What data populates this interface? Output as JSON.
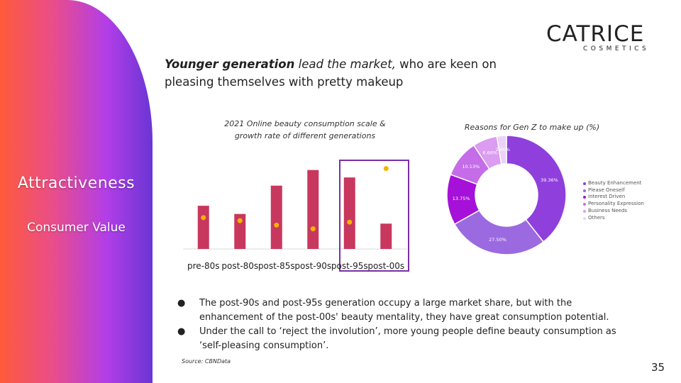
{
  "side": {
    "title": "Attractiveness",
    "subtitle": "Consumer Value"
  },
  "logo": {
    "main": "CATRICE",
    "sub": "COSMETICS"
  },
  "headline": {
    "bold": "Younger generation",
    "italic": "lead the market,",
    "rest_a": " who are keen on",
    "rest_b": "pleasing themselves with pretty makeup"
  },
  "chart_data": [
    {
      "type": "bar",
      "title_line1": "2021 Online beauty consumption scale &",
      "title_line2": "growth rate of different generations",
      "categories": [
        "pre-80s",
        "post-80s",
        "post-85s",
        "post-90s",
        "post-95s",
        "post-00s"
      ],
      "series": [
        {
          "kind": "bar",
          "values": [
            58,
            47,
            85,
            106,
            96,
            34
          ],
          "color": "#c8385e"
        },
        {
          "kind": "dot",
          "values": [
            42,
            38,
            32,
            27,
            36,
            108
          ],
          "color": "#f5b400"
        }
      ],
      "ylim": [
        0,
        120
      ],
      "highlight": [
        "post-95s",
        "post-00s"
      ],
      "highlight_color": "#7b2ea8"
    },
    {
      "type": "pie",
      "title": "Reasons for Gen Z to make up (%)",
      "labels": [
        "Beauty Enhancement",
        "Please Oneself",
        "Interest Driven",
        "Personality Expression",
        "Business Needs",
        "Others"
      ],
      "values": [
        39.36,
        27.5,
        13.75,
        10.13,
        6.66,
        2.6
      ],
      "value_labels": [
        "39.36%",
        "27.50%",
        "13.75%",
        "10.13%",
        "6.66%",
        "2.60%"
      ],
      "colors": [
        "#8e3fdc",
        "#9b6ae0",
        "#a511d8",
        "#c56ce9",
        "#db9cf1",
        "#ecd2f8"
      ]
    }
  ],
  "bullets": [
    {
      "line1": "The post-90s and post-95s generation occupy a large market share, but with the",
      "line2": "enhancement of the post-00s' beauty mentality, they have great consumption potential."
    },
    {
      "line1": "Under the call to ‘reject the involution’, more young people define beauty consumption as",
      "line2": "‘self-pleasing consumption’."
    }
  ],
  "source": "Source: CBNData",
  "page_number": "35"
}
